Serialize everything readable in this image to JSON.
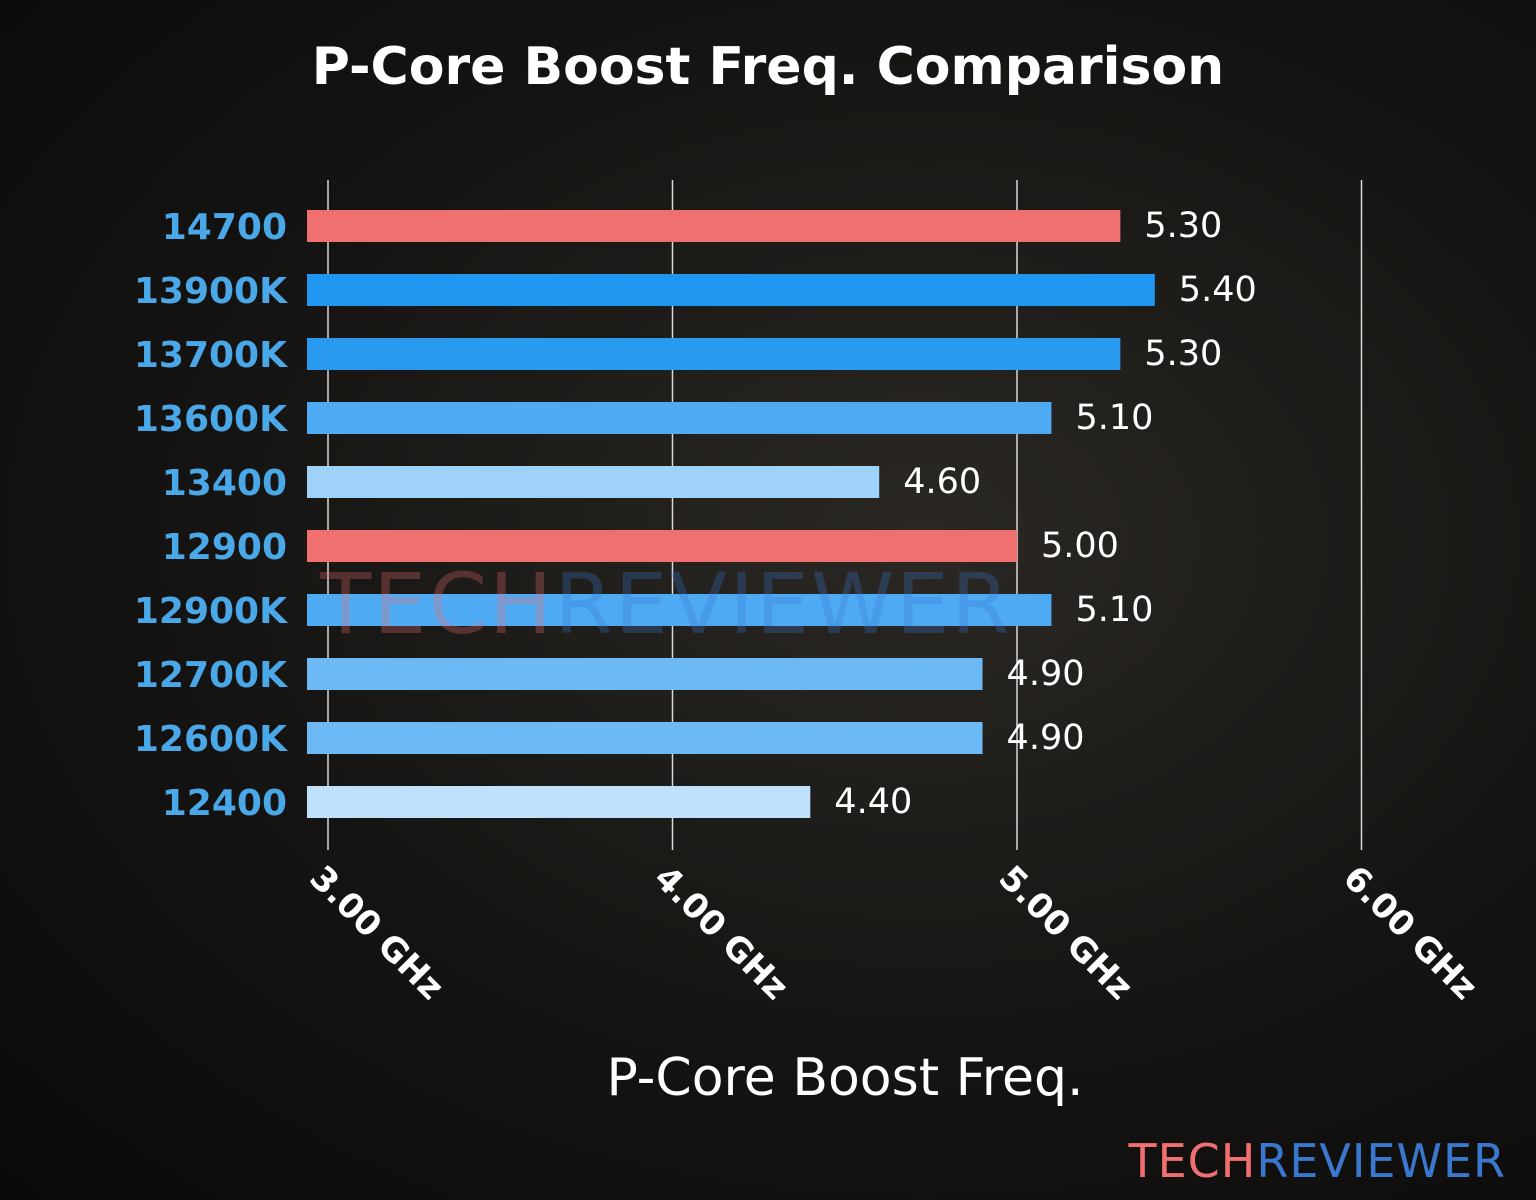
{
  "chart_data": {
    "type": "bar",
    "orientation": "horizontal",
    "title": "P-Core Boost Freq. Comparison",
    "xlabel": "P-Core Boost Freq.",
    "ylabel": "",
    "categories": [
      "14700",
      "13900K",
      "13700K",
      "13600K",
      "13400",
      "12900",
      "12900K",
      "12700K",
      "12600K",
      "12400"
    ],
    "values": [
      5.3,
      5.4,
      5.3,
      5.1,
      4.6,
      5.0,
      5.1,
      4.9,
      4.9,
      4.4
    ],
    "value_labels": [
      "5.30",
      "5.40",
      "5.30",
      "5.10",
      "4.60",
      "5.00",
      "5.10",
      "4.90",
      "4.90",
      "4.40"
    ],
    "bar_colors": [
      "#f07070",
      "#2196f0",
      "#2a9af0",
      "#4eaaf2",
      "#9fd2f8",
      "#f07070",
      "#4eaaf2",
      "#6cb9f5",
      "#6cb9f5",
      "#bfe1fc"
    ],
    "xticks": [
      3,
      4,
      5,
      6
    ],
    "xtick_labels": [
      "3.00 GHz",
      "4.00 GHz",
      "5.00 GHz",
      "6.00 GHz"
    ],
    "xlim": [
      2.94,
      6.0
    ],
    "grid": "vertical",
    "category_label_color": "#4aa8e8"
  },
  "watermark": {
    "part1": "TECH",
    "part2": "REVIEWER",
    "color1": "#f07070",
    "color2": "#3a78d0"
  }
}
